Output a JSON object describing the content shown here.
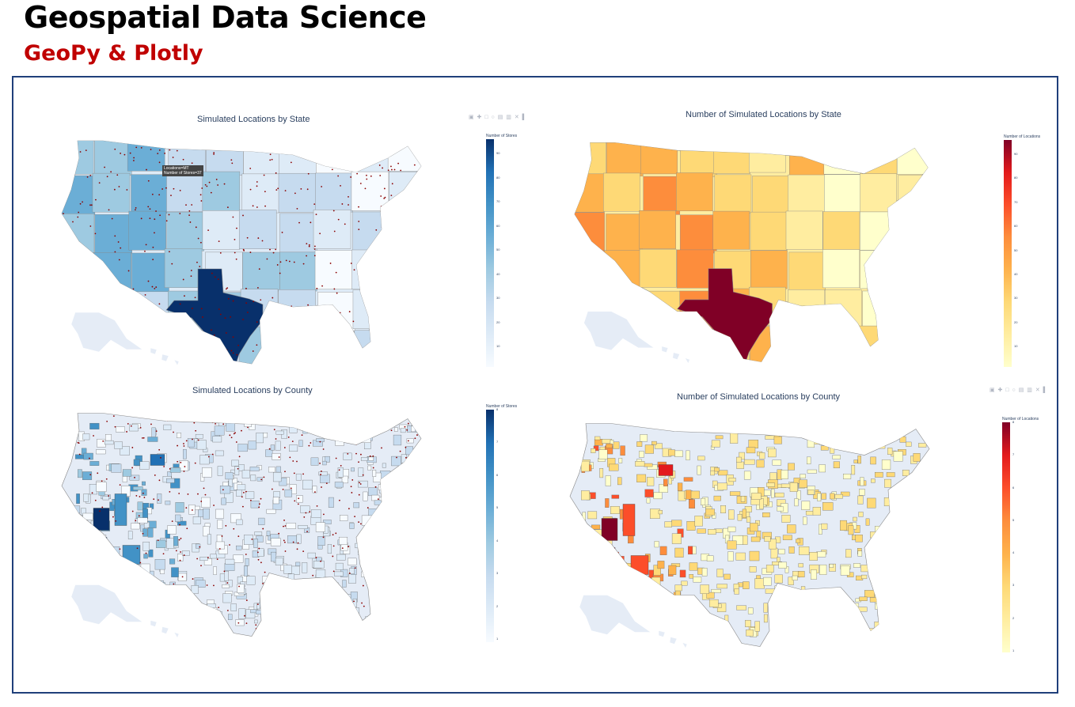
{
  "header": {
    "title": "Geospatial Data Science",
    "subtitle": "GeoPy & Plotly"
  },
  "modebar_icons": "▣ ✚ □ ○ ▤ ▥ ✕ ▌",
  "colors": {
    "title": "#000000",
    "subtitle": "#c00000",
    "frame": "#1f3f7a",
    "marker": "#8b0000",
    "land_background": "#e5ecf6",
    "blues": [
      "#f7fbff",
      "#deebf7",
      "#c6dbef",
      "#9ecae1",
      "#6baed6",
      "#4292c6",
      "#2171b5",
      "#08306b"
    ],
    "ylorrd": [
      "#ffffcc",
      "#ffeda0",
      "#fed976",
      "#feb24c",
      "#fd8d3c",
      "#fc4e2a",
      "#e31a1c",
      "#800026"
    ]
  },
  "panels": [
    {
      "title": "Simulated Locations by State",
      "colorbar_title": "Number of Stores",
      "ticks": [
        "90",
        "80",
        "70",
        "60",
        "50",
        "40",
        "30",
        "20",
        "10"
      ],
      "tooltip": "Locations=MT\nNumber of Stores=37",
      "colorscale": "Blues"
    },
    {
      "title": "Number of Simulated Locations by State",
      "colorbar_title": "Number of Locations",
      "ticks": [
        "90",
        "80",
        "70",
        "60",
        "50",
        "40",
        "30",
        "20",
        "10"
      ],
      "colorscale": "YlOrRd"
    },
    {
      "title": "Simulated Locations by County",
      "colorbar_title": "Number of Stores",
      "ticks": [
        "8",
        "7",
        "6",
        "5",
        "4",
        "3",
        "2",
        "1"
      ],
      "colorscale": "Blues"
    },
    {
      "title": "Number of Simulated Locations by County",
      "colorbar_title": "Number of Locations",
      "ticks": [
        "8",
        "7",
        "6",
        "5",
        "4",
        "3",
        "2",
        "1"
      ],
      "colorscale": "YlOrRd"
    }
  ]
}
